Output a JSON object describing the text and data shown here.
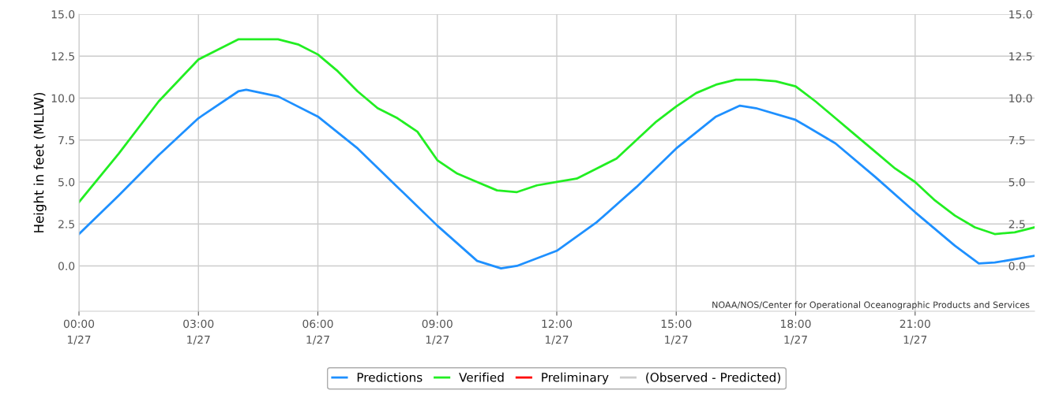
{
  "chart_data": {
    "type": "line",
    "ylabel": "Height in feet (MLLW)",
    "xlim": [
      0,
      24
    ],
    "ylim": [
      -2.7,
      15
    ],
    "y2lim": [
      -2.7,
      15
    ],
    "xticks": [
      {
        "value": 0,
        "label": "00:00"
      },
      {
        "value": 3,
        "label": "03:00"
      },
      {
        "value": 6,
        "label": "06:00"
      },
      {
        "value": 9,
        "label": "09:00"
      },
      {
        "value": 12,
        "label": "12:00"
      },
      {
        "value": 15,
        "label": "15:00"
      },
      {
        "value": 18,
        "label": "18:00"
      },
      {
        "value": 21,
        "label": "21:00"
      }
    ],
    "yticks": [
      {
        "value": 0,
        "label": "0.0"
      },
      {
        "value": 2.5,
        "label": "2.5"
      },
      {
        "value": 5,
        "label": "5.0"
      },
      {
        "value": 7.5,
        "label": "7.5"
      },
      {
        "value": 10,
        "label": "10.0"
      },
      {
        "value": 12.5,
        "label": "12.5"
      },
      {
        "value": 15,
        "label": "15.0"
      }
    ],
    "y2ticks": [
      {
        "value": 0,
        "label": "0.0"
      },
      {
        "value": 2.5,
        "label": "2.5"
      },
      {
        "value": 5,
        "label": "5.0"
      },
      {
        "value": 7.5,
        "label": "7.5"
      },
      {
        "value": 10,
        "label": "10.0"
      },
      {
        "value": 12.5,
        "label": "12.5"
      },
      {
        "value": 15,
        "label": "15.0"
      }
    ],
    "grid": true,
    "legend": "bottom",
    "marker": "none",
    "line_style": "solid",
    "annotations": [
      "NOAA/NOS/Center for Operational Oceanographic Products and Services",
      "1/27",
      "1/27",
      "1/27",
      "1/27",
      "1/27",
      "1/27",
      "1/27",
      "1/27"
    ],
    "series": [
      {
        "name": "Predictions",
        "color": "#1e90ff",
        "x": [
          0,
          1,
          2,
          3,
          4,
          4.2,
          5,
          6,
          7,
          8,
          9,
          10,
          10.6,
          11,
          12,
          13,
          14,
          15,
          16,
          16.6,
          17,
          18,
          19,
          20,
          21,
          22,
          22.6,
          23,
          24
        ],
        "values": [
          1.9,
          4.2,
          6.6,
          8.8,
          10.4,
          10.5,
          10.1,
          8.9,
          7.0,
          4.7,
          2.4,
          0.3,
          -0.15,
          0.0,
          0.9,
          2.6,
          4.7,
          7.0,
          8.9,
          9.55,
          9.4,
          8.7,
          7.3,
          5.3,
          3.2,
          1.2,
          0.15,
          0.2,
          0.6
        ]
      },
      {
        "name": "Verified",
        "color": "#22ee22",
        "x": [
          0,
          1,
          2,
          3,
          3.5,
          4,
          4.5,
          5,
          5.5,
          6,
          6.5,
          7,
          7.5,
          8,
          8.5,
          9,
          9.5,
          10,
          10.5,
          11,
          11.5,
          12,
          12.5,
          13,
          13.5,
          14,
          14.5,
          15,
          15.5,
          16,
          16.5,
          17,
          17.5,
          18,
          18.5,
          19,
          19.5,
          20,
          20.5,
          21,
          21.5,
          22,
          22.5,
          23,
          23.5,
          24
        ],
        "values": [
          3.8,
          6.7,
          9.8,
          12.3,
          12.9,
          13.5,
          13.5,
          13.5,
          13.2,
          12.6,
          11.6,
          10.4,
          9.4,
          8.8,
          8.0,
          6.3,
          5.5,
          5.0,
          4.5,
          4.4,
          4.8,
          5.0,
          5.2,
          5.8,
          6.4,
          7.5,
          8.6,
          9.5,
          10.3,
          10.8,
          11.1,
          11.1,
          11.0,
          10.7,
          9.8,
          8.8,
          7.8,
          6.8,
          5.8,
          5.0,
          3.9,
          3.0,
          2.3,
          1.9,
          2.0,
          2.3
        ]
      },
      {
        "name": "Preliminary",
        "color": "#ff0000"
      },
      {
        "name": "(Observed - Predicted)",
        "color": "#cccccc"
      }
    ]
  }
}
